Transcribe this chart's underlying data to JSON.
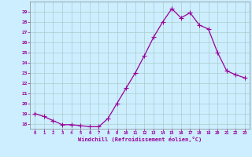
{
  "x": [
    0,
    1,
    2,
    3,
    4,
    5,
    6,
    7,
    8,
    9,
    10,
    11,
    12,
    13,
    14,
    15,
    16,
    17,
    18,
    19,
    20,
    21,
    22,
    23
  ],
  "y": [
    19.0,
    18.7,
    18.3,
    17.9,
    17.9,
    17.8,
    17.7,
    17.7,
    18.5,
    20.0,
    21.5,
    23.0,
    24.7,
    26.5,
    28.0,
    29.3,
    28.4,
    28.9,
    27.7,
    27.3,
    25.0,
    23.2,
    22.8,
    22.5
  ],
  "line_color": "#990099",
  "marker": "D",
  "marker_size": 2.0,
  "bg_color": "#cceeff",
  "grid_color": "#aacccc",
  "xlabel": "Windchill (Refroidissement éolien,°C)",
  "ylim": [
    17.5,
    30.0
  ],
  "yticks": [
    18,
    19,
    20,
    21,
    22,
    23,
    24,
    25,
    26,
    27,
    28,
    29
  ],
  "xlim": [
    -0.5,
    23.5
  ],
  "xticks": [
    0,
    1,
    2,
    3,
    4,
    5,
    6,
    7,
    8,
    9,
    10,
    11,
    12,
    13,
    14,
    15,
    16,
    17,
    18,
    19,
    20,
    21,
    22,
    23
  ],
  "label_color": "#990099",
  "tick_color": "#990099",
  "spine_color": "#888888"
}
